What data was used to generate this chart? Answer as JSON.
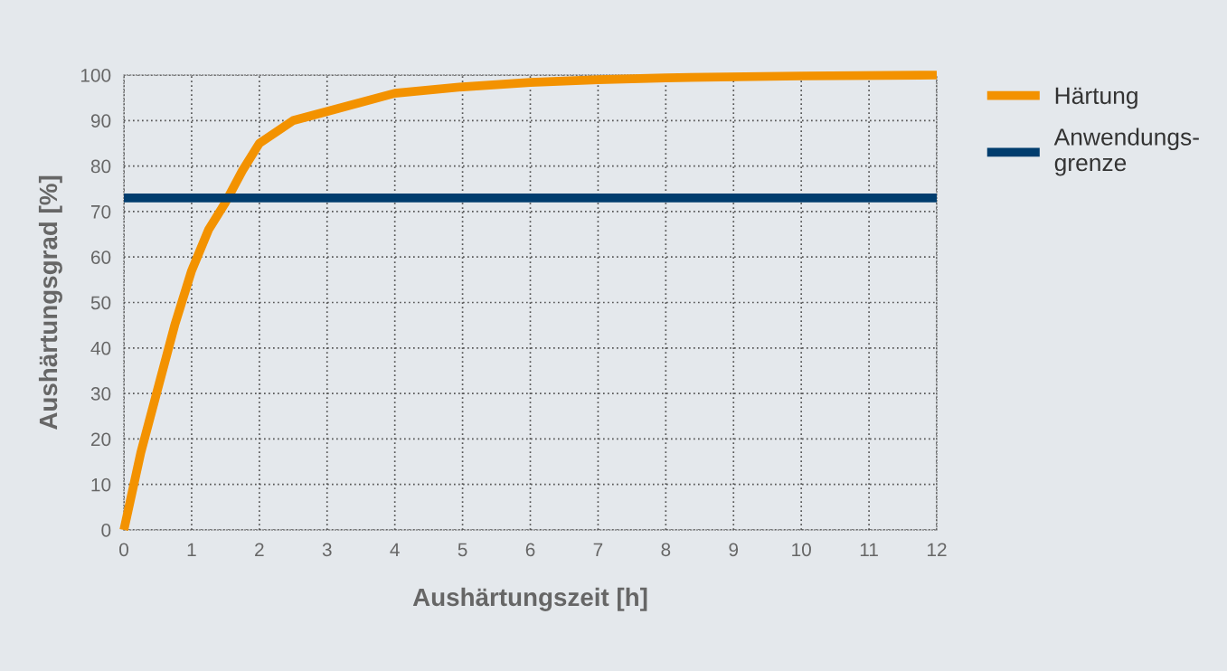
{
  "chart_data": {
    "type": "line",
    "xlabel": "Aushärtungszeit [h]",
    "ylabel": "Aushärtungsgrad [%]",
    "series": [
      {
        "name": "Härtung",
        "color": "#f39200",
        "x": [
          0,
          0.25,
          0.5,
          0.75,
          1,
          1.25,
          1.5,
          1.75,
          2,
          2.5,
          3,
          4,
          5,
          6,
          7,
          8,
          10,
          12
        ],
        "values": [
          0,
          17,
          31,
          45,
          57,
          66,
          72,
          79,
          85,
          90,
          92,
          96,
          97.4,
          98.4,
          99,
          99.4,
          99.8,
          100
        ]
      },
      {
        "name": "Anwendungs-\ngrenze",
        "color": "#003d6e",
        "x": [
          0,
          12
        ],
        "values": [
          73,
          73
        ]
      }
    ],
    "xlim": [
      0,
      12
    ],
    "xticks": [
      0,
      1,
      2,
      3,
      4,
      5,
      6,
      7,
      8,
      9,
      10,
      11,
      12
    ],
    "ylim": [
      0,
      100
    ],
    "yticks": [
      0,
      10,
      20,
      30,
      40,
      50,
      60,
      70,
      80,
      90,
      100
    ],
    "grid": true,
    "legend": "right",
    "marker": "none",
    "line_style": "solid"
  }
}
